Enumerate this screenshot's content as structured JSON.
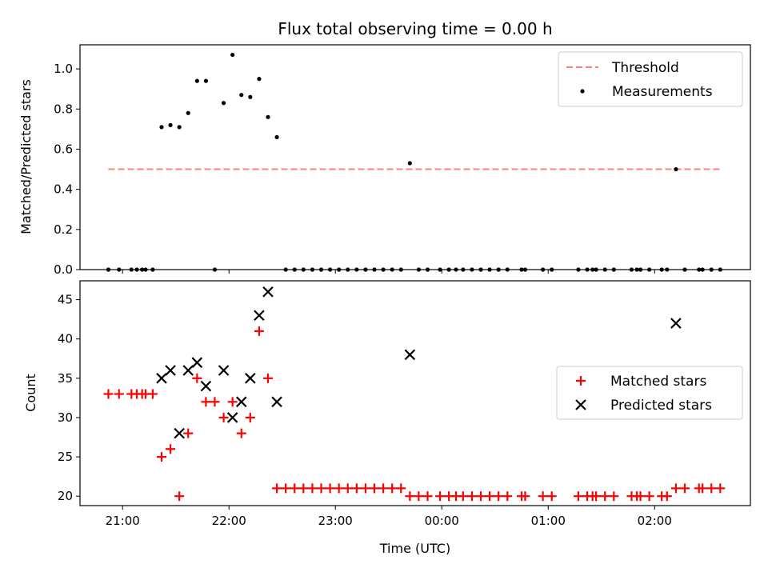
{
  "chart_data": [
    {
      "type": "scatter",
      "title": "Flux total observing time = 0.00 h",
      "xlabel": "",
      "ylabel": "Matched/Predicted stars",
      "x_range_hours": [
        20.6,
        26.9
      ],
      "ylim": [
        0,
        1.12
      ],
      "yticks": [
        0.0,
        0.2,
        0.4,
        0.6,
        0.8,
        1.0
      ],
      "ytick_labels": [
        "0.0",
        "0.2",
        "0.4",
        "0.6",
        "0.8",
        "1.0"
      ],
      "legend": {
        "placement": "top-right",
        "entries": [
          "Threshold",
          "Measurements"
        ]
      },
      "threshold": {
        "name": "Threshold",
        "value": 0.5,
        "x_start": "20:52",
        "x_end": "02:37",
        "color": "#ff7f7f",
        "style": "dashed"
      },
      "series": [
        {
          "name": "Measurements",
          "color": "#000000",
          "marker": "dot",
          "points": [
            {
              "x": "20:52",
              "y": 0.0
            },
            {
              "x": "20:58",
              "y": 0.0
            },
            {
              "x": "21:05",
              "y": 0.0
            },
            {
              "x": "21:08",
              "y": 0.0
            },
            {
              "x": "21:11",
              "y": 0.0
            },
            {
              "x": "21:13",
              "y": 0.0
            },
            {
              "x": "21:17",
              "y": 0.0
            },
            {
              "x": "21:22",
              "y": 0.71
            },
            {
              "x": "21:27",
              "y": 0.72
            },
            {
              "x": "21:32",
              "y": 0.71
            },
            {
              "x": "21:37",
              "y": 0.78
            },
            {
              "x": "21:42",
              "y": 0.94
            },
            {
              "x": "21:47",
              "y": 0.94
            },
            {
              "x": "21:52",
              "y": 0.0
            },
            {
              "x": "21:57",
              "y": 0.83
            },
            {
              "x": "22:02",
              "y": 1.07
            },
            {
              "x": "22:07",
              "y": 0.87
            },
            {
              "x": "22:12",
              "y": 0.86
            },
            {
              "x": "22:17",
              "y": 0.95
            },
            {
              "x": "22:22",
              "y": 0.76
            },
            {
              "x": "22:27",
              "y": 0.66
            },
            {
              "x": "22:32",
              "y": 0.0
            },
            {
              "x": "22:37",
              "y": 0.0
            },
            {
              "x": "22:42",
              "y": 0.0
            },
            {
              "x": "22:47",
              "y": 0.0
            },
            {
              "x": "22:52",
              "y": 0.0
            },
            {
              "x": "22:57",
              "y": 0.0
            },
            {
              "x": "23:02",
              "y": 0.0
            },
            {
              "x": "23:07",
              "y": 0.0
            },
            {
              "x": "23:12",
              "y": 0.0
            },
            {
              "x": "23:17",
              "y": 0.0
            },
            {
              "x": "23:22",
              "y": 0.0
            },
            {
              "x": "23:27",
              "y": 0.0
            },
            {
              "x": "23:32",
              "y": 0.0
            },
            {
              "x": "23:37",
              "y": 0.0
            },
            {
              "x": "23:42",
              "y": 0.53
            },
            {
              "x": "23:47",
              "y": 0.0
            },
            {
              "x": "23:52",
              "y": 0.0
            },
            {
              "x": "23:59",
              "y": 0.0
            },
            {
              "x": "00:04",
              "y": 0.0
            },
            {
              "x": "00:08",
              "y": 0.0
            },
            {
              "x": "00:12",
              "y": 0.0
            },
            {
              "x": "00:17",
              "y": 0.0
            },
            {
              "x": "00:22",
              "y": 0.0
            },
            {
              "x": "00:27",
              "y": 0.0
            },
            {
              "x": "00:32",
              "y": 0.0
            },
            {
              "x": "00:37",
              "y": 0.0
            },
            {
              "x": "00:45",
              "y": 0.0
            },
            {
              "x": "00:47",
              "y": 0.0
            },
            {
              "x": "00:57",
              "y": 0.0
            },
            {
              "x": "01:02",
              "y": 0.0
            },
            {
              "x": "01:17",
              "y": 0.0
            },
            {
              "x": "01:22",
              "y": 0.0
            },
            {
              "x": "01:25",
              "y": 0.0
            },
            {
              "x": "01:27",
              "y": 0.0
            },
            {
              "x": "01:32",
              "y": 0.0
            },
            {
              "x": "01:37",
              "y": 0.0
            },
            {
              "x": "01:47",
              "y": 0.0
            },
            {
              "x": "01:50",
              "y": 0.0
            },
            {
              "x": "01:52",
              "y": 0.0
            },
            {
              "x": "01:57",
              "y": 0.0
            },
            {
              "x": "02:04",
              "y": 0.0
            },
            {
              "x": "02:07",
              "y": 0.0
            },
            {
              "x": "02:12",
              "y": 0.5
            },
            {
              "x": "02:17",
              "y": 0.0
            },
            {
              "x": "02:25",
              "y": 0.0
            },
            {
              "x": "02:27",
              "y": 0.0
            },
            {
              "x": "02:32",
              "y": 0.0
            },
            {
              "x": "02:37",
              "y": 0.0
            }
          ]
        }
      ]
    },
    {
      "type": "scatter",
      "title": "",
      "xlabel": "Time (UTC)",
      "ylabel": "Count",
      "x_range_hours": [
        20.6,
        26.9
      ],
      "xticks": [
        "21:00",
        "22:00",
        "23:00",
        "00:00",
        "01:00",
        "02:00"
      ],
      "ylim": [
        18.8,
        47.4
      ],
      "yticks": [
        20,
        25,
        30,
        35,
        40,
        45
      ],
      "ytick_labels": [
        "20",
        "25",
        "30",
        "35",
        "40",
        "45"
      ],
      "legend": {
        "placement": "center-right",
        "entries": [
          "Matched stars",
          "Predicted stars"
        ]
      },
      "series": [
        {
          "name": "Matched stars",
          "color": "#ff0000",
          "marker": "plus",
          "points": [
            {
              "x": "20:52",
              "y": 33
            },
            {
              "x": "20:58",
              "y": 33
            },
            {
              "x": "21:05",
              "y": 33
            },
            {
              "x": "21:08",
              "y": 33
            },
            {
              "x": "21:11",
              "y": 33
            },
            {
              "x": "21:13",
              "y": 33
            },
            {
              "x": "21:17",
              "y": 33
            },
            {
              "x": "21:22",
              "y": 25
            },
            {
              "x": "21:27",
              "y": 26
            },
            {
              "x": "21:32",
              "y": 20
            },
            {
              "x": "21:37",
              "y": 28
            },
            {
              "x": "21:42",
              "y": 35
            },
            {
              "x": "21:47",
              "y": 32
            },
            {
              "x": "21:52",
              "y": 32
            },
            {
              "x": "21:57",
              "y": 30
            },
            {
              "x": "22:02",
              "y": 32
            },
            {
              "x": "22:07",
              "y": 28
            },
            {
              "x": "22:12",
              "y": 30
            },
            {
              "x": "22:17",
              "y": 41
            },
            {
              "x": "22:22",
              "y": 35
            },
            {
              "x": "22:27",
              "y": 21
            },
            {
              "x": "22:32",
              "y": 21
            },
            {
              "x": "22:37",
              "y": 21
            },
            {
              "x": "22:42",
              "y": 21
            },
            {
              "x": "22:47",
              "y": 21
            },
            {
              "x": "22:52",
              "y": 21
            },
            {
              "x": "22:57",
              "y": 21
            },
            {
              "x": "23:02",
              "y": 21
            },
            {
              "x": "23:07",
              "y": 21
            },
            {
              "x": "23:12",
              "y": 21
            },
            {
              "x": "23:17",
              "y": 21
            },
            {
              "x": "23:22",
              "y": 21
            },
            {
              "x": "23:27",
              "y": 21
            },
            {
              "x": "23:32",
              "y": 21
            },
            {
              "x": "23:37",
              "y": 21
            },
            {
              "x": "23:42",
              "y": 20
            },
            {
              "x": "23:47",
              "y": 20
            },
            {
              "x": "23:52",
              "y": 20
            },
            {
              "x": "23:59",
              "y": 20
            },
            {
              "x": "00:04",
              "y": 20
            },
            {
              "x": "00:08",
              "y": 20
            },
            {
              "x": "00:12",
              "y": 20
            },
            {
              "x": "00:17",
              "y": 20
            },
            {
              "x": "00:22",
              "y": 20
            },
            {
              "x": "00:27",
              "y": 20
            },
            {
              "x": "00:32",
              "y": 20
            },
            {
              "x": "00:37",
              "y": 20
            },
            {
              "x": "00:45",
              "y": 20
            },
            {
              "x": "00:47",
              "y": 20
            },
            {
              "x": "00:57",
              "y": 20
            },
            {
              "x": "01:02",
              "y": 20
            },
            {
              "x": "01:17",
              "y": 20
            },
            {
              "x": "01:22",
              "y": 20
            },
            {
              "x": "01:25",
              "y": 20
            },
            {
              "x": "01:27",
              "y": 20
            },
            {
              "x": "01:32",
              "y": 20
            },
            {
              "x": "01:37",
              "y": 20
            },
            {
              "x": "01:47",
              "y": 20
            },
            {
              "x": "01:50",
              "y": 20
            },
            {
              "x": "01:52",
              "y": 20
            },
            {
              "x": "01:57",
              "y": 20
            },
            {
              "x": "02:04",
              "y": 20
            },
            {
              "x": "02:07",
              "y": 20
            },
            {
              "x": "02:12",
              "y": 21
            },
            {
              "x": "02:17",
              "y": 21
            },
            {
              "x": "02:25",
              "y": 21
            },
            {
              "x": "02:27",
              "y": 21
            },
            {
              "x": "02:32",
              "y": 21
            },
            {
              "x": "02:37",
              "y": 21
            }
          ]
        },
        {
          "name": "Predicted stars",
          "color": "#000000",
          "marker": "x",
          "points": [
            {
              "x": "21:22",
              "y": 35
            },
            {
              "x": "21:27",
              "y": 36
            },
            {
              "x": "21:32",
              "y": 28
            },
            {
              "x": "21:37",
              "y": 36
            },
            {
              "x": "21:42",
              "y": 37
            },
            {
              "x": "21:47",
              "y": 34
            },
            {
              "x": "21:57",
              "y": 36
            },
            {
              "x": "22:02",
              "y": 30
            },
            {
              "x": "22:07",
              "y": 32
            },
            {
              "x": "22:12",
              "y": 35
            },
            {
              "x": "22:17",
              "y": 43
            },
            {
              "x": "22:22",
              "y": 46
            },
            {
              "x": "22:27",
              "y": 32
            },
            {
              "x": "23:42",
              "y": 38
            },
            {
              "x": "02:12",
              "y": 42
            }
          ]
        }
      ]
    }
  ]
}
